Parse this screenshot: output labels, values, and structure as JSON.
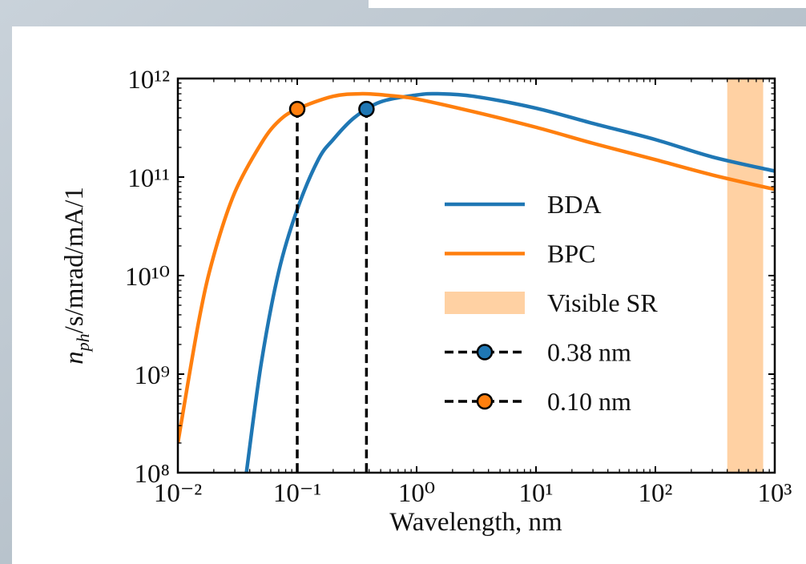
{
  "chart_data": {
    "type": "line",
    "x_label": "Wavelength, nm",
    "y_label": {
      "symbol": "n",
      "subscript": "ph",
      "units": "/s/mrad/mA/1"
    },
    "x_scale": "log",
    "y_scale": "log",
    "xlim": [
      0.01,
      1000
    ],
    "ylim": [
      100000000.0,
      1000000000000.0
    ],
    "xticks": [
      {
        "value": 0.01,
        "label": "10⁻²"
      },
      {
        "value": 0.1,
        "label": "10⁻¹"
      },
      {
        "value": 1,
        "label": "10⁰"
      },
      {
        "value": 10,
        "label": "10¹"
      },
      {
        "value": 100,
        "label": "10²"
      },
      {
        "value": 1000,
        "label": "10³"
      }
    ],
    "yticks": [
      {
        "value": 100000000.0,
        "label": "10⁸"
      },
      {
        "value": 1000000000.0,
        "label": "10⁹"
      },
      {
        "value": 10000000000.0,
        "label": "10¹⁰"
      },
      {
        "value": 100000000000.0,
        "label": "10¹¹"
      },
      {
        "value": 1000000000000.0,
        "label": "10¹²"
      }
    ],
    "minor_ticks": true,
    "series": [
      {
        "name": "BDA",
        "color": "#1f77b4",
        "x": [
          0.0375,
          0.05,
          0.07,
          0.1,
          0.15,
          0.2,
          0.3,
          0.5,
          1,
          1.5,
          3,
          10,
          30,
          100,
          300,
          1000
        ],
        "values": [
          100000000.0,
          1300000000.0,
          11000000000.0,
          47000000000.0,
          150000000000.0,
          240000000000.0,
          400000000000.0,
          580000000000.0,
          680000000000.0,
          700000000000.0,
          660000000000.0,
          500000000000.0,
          350000000000.0,
          240000000000.0,
          160000000000.0,
          115000000000.0
        ]
      },
      {
        "name": "BPC",
        "color": "#ff7f0e",
        "x": [
          0.01,
          0.015,
          0.02,
          0.03,
          0.05,
          0.07,
          0.1,
          0.2,
          0.35,
          0.6,
          1,
          3,
          10,
          30,
          100,
          300,
          1000
        ],
        "values": [
          200000000.0,
          3500000000.0,
          16000000000.0,
          70000000000.0,
          220000000000.0,
          370000000000.0,
          490000000000.0,
          660000000000.0,
          700000000000.0,
          670000000000.0,
          620000000000.0,
          460000000000.0,
          320000000000.0,
          220000000000.0,
          150000000000.0,
          105000000000.0,
          75000000000.0
        ]
      }
    ],
    "span": {
      "name": "Visible SR",
      "x": [
        400,
        800
      ],
      "color": "#ffd1a3"
    },
    "markers": [
      {
        "name": "0.38 nm",
        "x": [
          0.38
        ],
        "values": [
          490000000000.0
        ],
        "color": "#1f77b4"
      },
      {
        "name": "0.10 nm",
        "x": [
          0.1
        ],
        "values": [
          490000000000.0
        ],
        "color": "#ff7f0e"
      }
    ],
    "legend": "center-right"
  }
}
